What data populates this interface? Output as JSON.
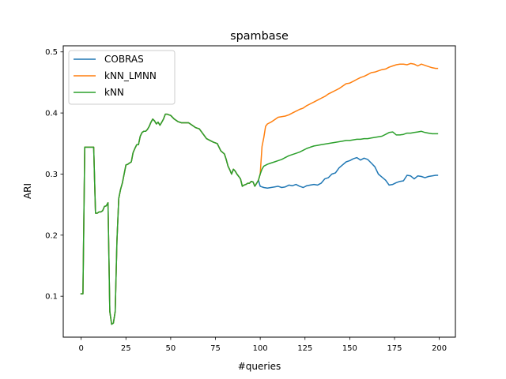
{
  "chart_data": {
    "type": "line",
    "title": "spambase",
    "xlabel": "#queries",
    "ylabel": "ARI",
    "xlim": [
      -10,
      209
    ],
    "ylim": [
      0.033,
      0.51
    ],
    "xticks": [
      0,
      25,
      50,
      75,
      100,
      125,
      150,
      175,
      200
    ],
    "xtick_labels": [
      "0",
      "25",
      "50",
      "75",
      "100",
      "125",
      "150",
      "175",
      "200"
    ],
    "yticks": [
      0.1,
      0.2,
      0.3,
      0.4,
      0.5
    ],
    "ytick_labels": [
      "0.1",
      "0.2",
      "0.3",
      "0.4",
      "0.5"
    ],
    "grid": false,
    "legend_position": "top-left",
    "shared_prefix": {
      "x": [
        0,
        1,
        2,
        3,
        4,
        5,
        6,
        7,
        8,
        9,
        10,
        11,
        12,
        13,
        14,
        15,
        16,
        17,
        18,
        19,
        20,
        21,
        22,
        23,
        24,
        25,
        26,
        27,
        28,
        29,
        30,
        31,
        32,
        33,
        34,
        35,
        36,
        37,
        38,
        39,
        40,
        41,
        42,
        43,
        44,
        45,
        46,
        47,
        48,
        49,
        50,
        52,
        54,
        56,
        58,
        60,
        62,
        64,
        66,
        68,
        70,
        72,
        74,
        76,
        78,
        80,
        81,
        82,
        83,
        84,
        85,
        86,
        87,
        88,
        89,
        90,
        91,
        92,
        93,
        94,
        95,
        96,
        97,
        98,
        99
      ],
      "y": [
        0.104,
        0.104,
        0.344,
        0.344,
        0.344,
        0.344,
        0.344,
        0.344,
        0.236,
        0.236,
        0.238,
        0.238,
        0.24,
        0.247,
        0.248,
        0.253,
        0.075,
        0.054,
        0.056,
        0.075,
        0.19,
        0.26,
        0.275,
        0.285,
        0.3,
        0.315,
        0.316,
        0.318,
        0.32,
        0.335,
        0.342,
        0.348,
        0.348,
        0.362,
        0.368,
        0.37,
        0.37,
        0.373,
        0.378,
        0.385,
        0.39,
        0.387,
        0.382,
        0.385,
        0.38,
        0.385,
        0.39,
        0.398,
        0.398,
        0.397,
        0.396,
        0.39,
        0.386,
        0.384,
        0.384,
        0.384,
        0.38,
        0.376,
        0.374,
        0.366,
        0.358,
        0.355,
        0.352,
        0.35,
        0.338,
        0.333,
        0.324,
        0.313,
        0.307,
        0.3,
        0.308,
        0.305,
        0.3,
        0.296,
        0.292,
        0.28,
        0.282,
        0.283,
        0.285,
        0.285,
        0.288,
        0.287,
        0.28,
        0.285,
        0.29
      ]
    },
    "series": [
      {
        "name": "COBRAS",
        "color": "#1f77b4",
        "x": [
          100,
          102,
          104,
          106,
          108,
          110,
          112,
          114,
          116,
          118,
          120,
          122,
          124,
          126,
          128,
          130,
          132,
          134,
          136,
          138,
          140,
          142,
          144,
          146,
          148,
          150,
          152,
          154,
          156,
          158,
          160,
          162,
          164,
          166,
          168,
          170,
          172,
          174,
          176,
          178,
          180,
          182,
          184,
          186,
          188,
          190,
          192,
          194,
          196,
          198,
          199
        ],
        "values": [
          0.28,
          0.278,
          0.277,
          0.278,
          0.279,
          0.28,
          0.278,
          0.279,
          0.282,
          0.281,
          0.283,
          0.28,
          0.278,
          0.281,
          0.282,
          0.283,
          0.282,
          0.285,
          0.292,
          0.294,
          0.3,
          0.302,
          0.31,
          0.315,
          0.32,
          0.322,
          0.325,
          0.327,
          0.323,
          0.326,
          0.324,
          0.318,
          0.312,
          0.3,
          0.295,
          0.29,
          0.282,
          0.283,
          0.286,
          0.288,
          0.289,
          0.298,
          0.297,
          0.292,
          0.297,
          0.296,
          0.294,
          0.296,
          0.297,
          0.298,
          0.298
        ]
      },
      {
        "name": "kNN_LMNN",
        "color": "#ff7f0e",
        "x": [
          100,
          101,
          102,
          103,
          104,
          106,
          108,
          110,
          112,
          114,
          116,
          118,
          120,
          122,
          124,
          126,
          128,
          130,
          132,
          134,
          136,
          138,
          140,
          142,
          144,
          146,
          148,
          150,
          152,
          154,
          156,
          158,
          160,
          162,
          164,
          166,
          168,
          170,
          172,
          174,
          176,
          178,
          180,
          182,
          184,
          186,
          188,
          190,
          192,
          194,
          196,
          198,
          199
        ],
        "values": [
          0.3,
          0.345,
          0.36,
          0.378,
          0.382,
          0.385,
          0.389,
          0.393,
          0.394,
          0.395,
          0.397,
          0.4,
          0.403,
          0.406,
          0.408,
          0.412,
          0.415,
          0.418,
          0.421,
          0.424,
          0.427,
          0.431,
          0.434,
          0.437,
          0.44,
          0.444,
          0.448,
          0.449,
          0.452,
          0.455,
          0.458,
          0.46,
          0.463,
          0.466,
          0.467,
          0.469,
          0.471,
          0.472,
          0.475,
          0.477,
          0.479,
          0.48,
          0.48,
          0.479,
          0.481,
          0.48,
          0.477,
          0.48,
          0.478,
          0.476,
          0.474,
          0.473,
          0.473
        ]
      },
      {
        "name": "kNN",
        "color": "#2ca02c",
        "x": [
          100,
          101,
          102,
          104,
          106,
          108,
          110,
          112,
          114,
          116,
          118,
          120,
          122,
          124,
          126,
          128,
          130,
          132,
          134,
          136,
          138,
          140,
          142,
          144,
          146,
          148,
          150,
          152,
          154,
          156,
          158,
          160,
          162,
          164,
          166,
          168,
          170,
          172,
          174,
          176,
          178,
          180,
          182,
          184,
          186,
          188,
          190,
          192,
          194,
          196,
          198,
          199
        ],
        "values": [
          0.3,
          0.308,
          0.313,
          0.316,
          0.318,
          0.32,
          0.322,
          0.324,
          0.327,
          0.33,
          0.332,
          0.334,
          0.336,
          0.339,
          0.342,
          0.344,
          0.346,
          0.347,
          0.348,
          0.349,
          0.35,
          0.351,
          0.352,
          0.353,
          0.354,
          0.355,
          0.355,
          0.356,
          0.357,
          0.357,
          0.358,
          0.358,
          0.359,
          0.36,
          0.361,
          0.362,
          0.365,
          0.368,
          0.369,
          0.364,
          0.364,
          0.365,
          0.367,
          0.367,
          0.368,
          0.369,
          0.37,
          0.368,
          0.367,
          0.366,
          0.366,
          0.366
        ]
      }
    ]
  }
}
